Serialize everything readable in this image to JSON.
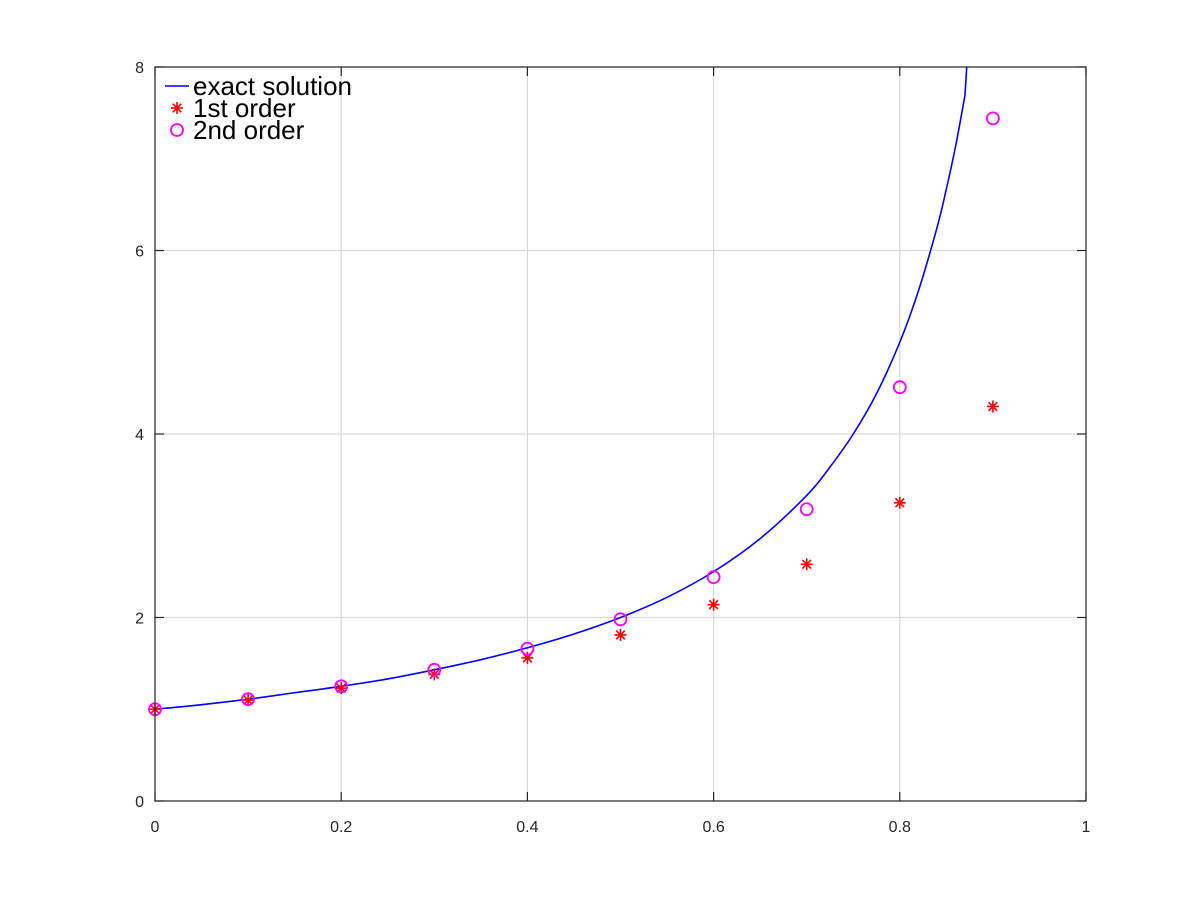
{
  "chart_data": {
    "type": "scatter",
    "title": "",
    "xlabel": "",
    "ylabel": "",
    "xlim": [
      0,
      1
    ],
    "ylim": [
      0,
      8
    ],
    "x_ticks": [
      "0",
      "0.2",
      "0.4",
      "0.6",
      "0.8",
      "1"
    ],
    "x_tick_values": [
      0,
      0.2,
      0.4,
      0.6,
      0.8,
      1
    ],
    "y_ticks": [
      "0",
      "2",
      "4",
      "6",
      "8"
    ],
    "y_tick_values": [
      0,
      2,
      4,
      6,
      8
    ],
    "grid": true,
    "legend_position": "top-left",
    "series": [
      {
        "name": "exact solution",
        "kind": "line",
        "color": "#0000ff",
        "x": [
          0,
          0.05,
          0.1,
          0.15,
          0.2,
          0.25,
          0.3,
          0.35,
          0.4,
          0.45,
          0.5,
          0.55,
          0.6,
          0.65,
          0.7,
          0.725,
          0.75,
          0.775,
          0.8,
          0.82,
          0.84,
          0.85,
          0.86,
          0.87
        ],
        "y": [
          1.0,
          1.05,
          1.11,
          1.18,
          1.25,
          1.33,
          1.43,
          1.54,
          1.67,
          1.82,
          2.0,
          2.22,
          2.5,
          2.86,
          3.33,
          3.64,
          4.0,
          4.44,
          5.0,
          5.56,
          6.25,
          6.67,
          7.14,
          7.69
        ]
      },
      {
        "name": "1st order",
        "kind": "marker",
        "marker": "asterisk",
        "color": "#ff0000",
        "x": [
          0,
          0.1,
          0.2,
          0.3,
          0.4,
          0.5,
          0.6,
          0.7,
          0.8,
          0.9
        ],
        "y": [
          1.0,
          1.1,
          1.23,
          1.38,
          1.56,
          1.81,
          2.14,
          2.58,
          3.25,
          4.3
        ]
      },
      {
        "name": "2nd order",
        "kind": "marker",
        "marker": "circle",
        "color": "#ff00ff",
        "x": [
          0,
          0.1,
          0.2,
          0.3,
          0.4,
          0.5,
          0.6,
          0.7,
          0.8,
          0.9
        ],
        "y": [
          1.0,
          1.11,
          1.25,
          1.43,
          1.66,
          1.98,
          2.44,
          3.18,
          4.51,
          7.44
        ]
      }
    ]
  }
}
